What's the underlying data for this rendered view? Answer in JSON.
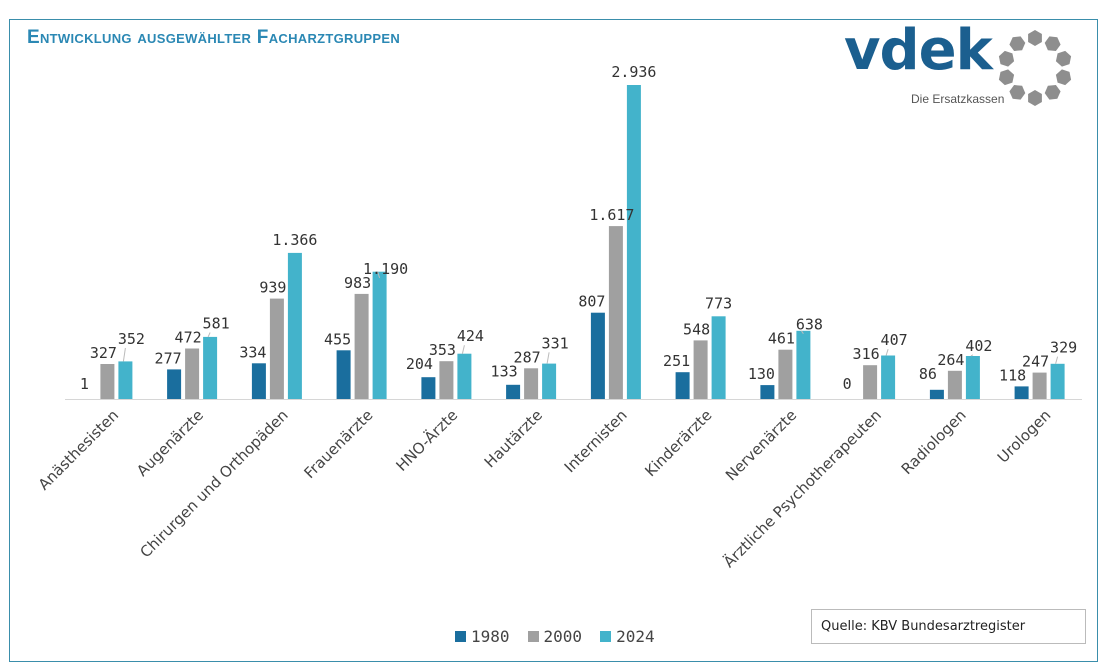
{
  "title": "Entwicklung ausgewählter Facharztgruppen",
  "logo": {
    "wordmark": "vdek",
    "tagline": "Die Ersatzkassen"
  },
  "source": "Quelle: KBV Bundesarztregister",
  "colors": {
    "frame": "#3a8eab",
    "title": "#2b88b4",
    "s1980": "#1a6e9e",
    "s2000": "#a0a0a0",
    "s2024": "#43b3cb",
    "logo": "#1b5f8f",
    "logo_ring": "#8e8e8e"
  },
  "chart_data": {
    "type": "bar",
    "title": "Entwicklung ausgewählter Facharztgruppen",
    "xlabel": "",
    "ylabel": "",
    "ylim": [
      0,
      2936
    ],
    "grid": false,
    "legend_position": "bottom",
    "categories": [
      "Anästhesisten",
      "Augenärzte",
      "Chirurgen und Orthopäden",
      "Frauenärzte",
      "HNO-Ärzte",
      "Hautärzte",
      "Internisten",
      "Kinderärzte",
      "Nervenärzte",
      "Ärztliche Psychotherapeuten",
      "Radiologen",
      "Urologen"
    ],
    "series": [
      {
        "name": "1980",
        "values": [
          1,
          277,
          334,
          455,
          204,
          133,
          807,
          251,
          130,
          0,
          86,
          118
        ],
        "labels": [
          "1",
          "277",
          "334",
          "455",
          "204",
          "133",
          "807",
          "251",
          "130",
          "0",
          "86",
          "118"
        ]
      },
      {
        "name": "2000",
        "values": [
          327,
          472,
          939,
          983,
          353,
          287,
          1617,
          548,
          461,
          316,
          264,
          247
        ],
        "labels": [
          "327",
          "472",
          "939",
          "983",
          "353",
          "287",
          "1.617",
          "548",
          "461",
          "316",
          "264",
          "247"
        ]
      },
      {
        "name": "2024",
        "values": [
          352,
          581,
          1366,
          1190,
          424,
          331,
          2936,
          773,
          638,
          407,
          402,
          329
        ],
        "labels": [
          "352",
          "581",
          "1.366",
          "1.190",
          "424",
          "331",
          "2.936",
          "773",
          "638",
          "407",
          "402",
          "329"
        ]
      }
    ]
  }
}
